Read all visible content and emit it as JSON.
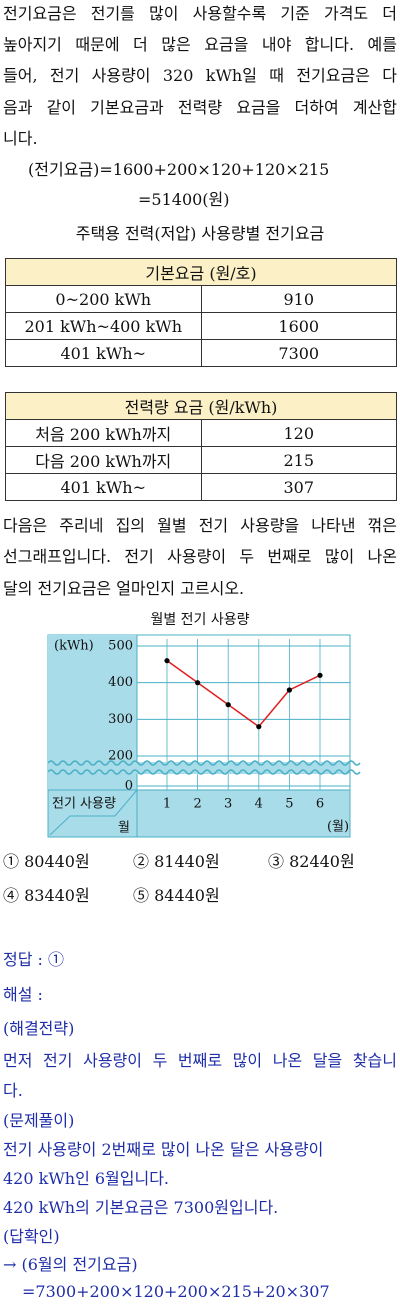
{
  "problem": {
    "paragraph": [
      "전기요금은 전기를 많이 사용할수록 기준 가격도 더",
      "높아지기 때문에 더 많은 요금을 내야 합니다. 예를",
      "들어, 전기 사용량이 320 kWh일 때 전기요금은 다",
      "음과 같이 기본요금과 전력량 요금을 더하여 계산합",
      "니다."
    ],
    "equation": [
      "(전기요금)=1600+200×120+120×215",
      "=51400(원)"
    ],
    "table_title": "주택용 전력(저압) 사용량별 전기요금",
    "table1": {
      "header": "기본요금 (원/호)",
      "rows": [
        [
          "0~200 kWh",
          "910"
        ],
        [
          "201 kWh~400 kWh",
          "1600"
        ],
        [
          "401 kWh~",
          "7300"
        ]
      ]
    },
    "table2": {
      "header": "전력량 요금 (원/kWh)",
      "rows": [
        [
          "처음 200 kWh까지",
          "120"
        ],
        [
          "다음 200 kWh까지",
          "215"
        ],
        [
          "401 kWh~",
          "307"
        ]
      ]
    },
    "question": [
      "다음은 주리네 집의 월별 전기 사용량을 나타낸 꺾은",
      "선그래프입니다. 전기 사용량이 두 번째로 많이 나온",
      "달의 전기요금은 얼마인지 고르시오."
    ],
    "choices": [
      [
        "① 80440원",
        "② 81440원",
        "③ 82440원"
      ],
      [
        "④ 83440원",
        "⑤ 84440원"
      ]
    ]
  },
  "chart_data": {
    "type": "line",
    "title": "월별 전기 사용량",
    "y_label": "(kWh)",
    "x_label": "(월)",
    "corner_label": [
      "전기 사용량",
      "월"
    ],
    "x": [
      "1",
      "2",
      "3",
      "4",
      "5",
      "6"
    ],
    "values": [
      460,
      400,
      340,
      280,
      380,
      420
    ],
    "color": "#e02020",
    "marker_color": "#000000",
    "ylim": [
      200,
      500
    ],
    "yticks": [
      0,
      200,
      300,
      400,
      500
    ],
    "axis_break": true,
    "grid": true
  },
  "solution": {
    "lines": [
      "정답 : ①",
      "해설 :",
      "(해결전략)",
      "먼저 전기 사용량이 두 번째로 많이 나온 달을 찾습니",
      "다.",
      "(문제풀이)",
      "전기 사용량이 2번째로 많이 나온 달은 사용량이",
      "420 kWh인 6월입니다.",
      "420 kWh의 기본요금은 7300원입니다.",
      "(답확인)",
      "→ (6월의 전기요금)",
      "=7300+200×120+200×215+20×307"
    ]
  }
}
